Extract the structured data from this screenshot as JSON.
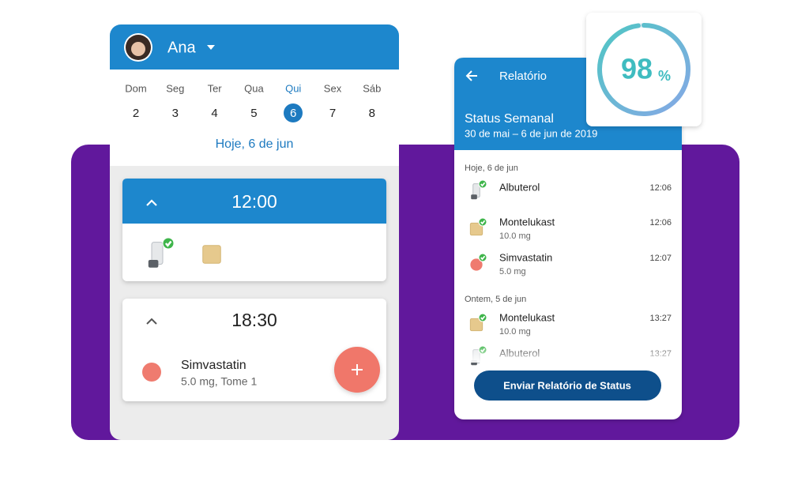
{
  "user": "Ana",
  "calendar": {
    "days": [
      "Dom",
      "Seg",
      "Ter",
      "Qua",
      "Qui",
      "Sex",
      "Sáb"
    ],
    "dates": [
      2,
      3,
      4,
      5,
      6,
      7,
      8
    ],
    "today": "Hoje, 6 de jun"
  },
  "schedule": [
    {
      "time": "12:00"
    },
    {
      "time": "18:30",
      "medication": "Simvastatin",
      "details": "5.0 mg, Tome 1"
    }
  ],
  "report": {
    "title": "Relatório",
    "heading": "Status Semanal",
    "period": "30 de mai – 6 de jun de 2019",
    "sections": [
      {
        "label": "Hoje, 6 de jun",
        "entries": [
          {
            "name": "Albuterol",
            "time": "12:06"
          },
          {
            "name": "Montelukast",
            "dose": "10.0 mg",
            "time": "12:06"
          },
          {
            "name": "Simvastatin",
            "dose": "5.0 mg",
            "time": "12:07"
          }
        ]
      },
      {
        "label": "Ontem, 5 de jun",
        "entries": [
          {
            "name": "Montelukast",
            "dose": "10.0 mg",
            "time": "13:27"
          },
          {
            "name": "Albuterol",
            "time": "13:27"
          }
        ]
      }
    ],
    "button": "Enviar Relatório de Status"
  },
  "adherence": {
    "value": 98,
    "unit": "%"
  }
}
